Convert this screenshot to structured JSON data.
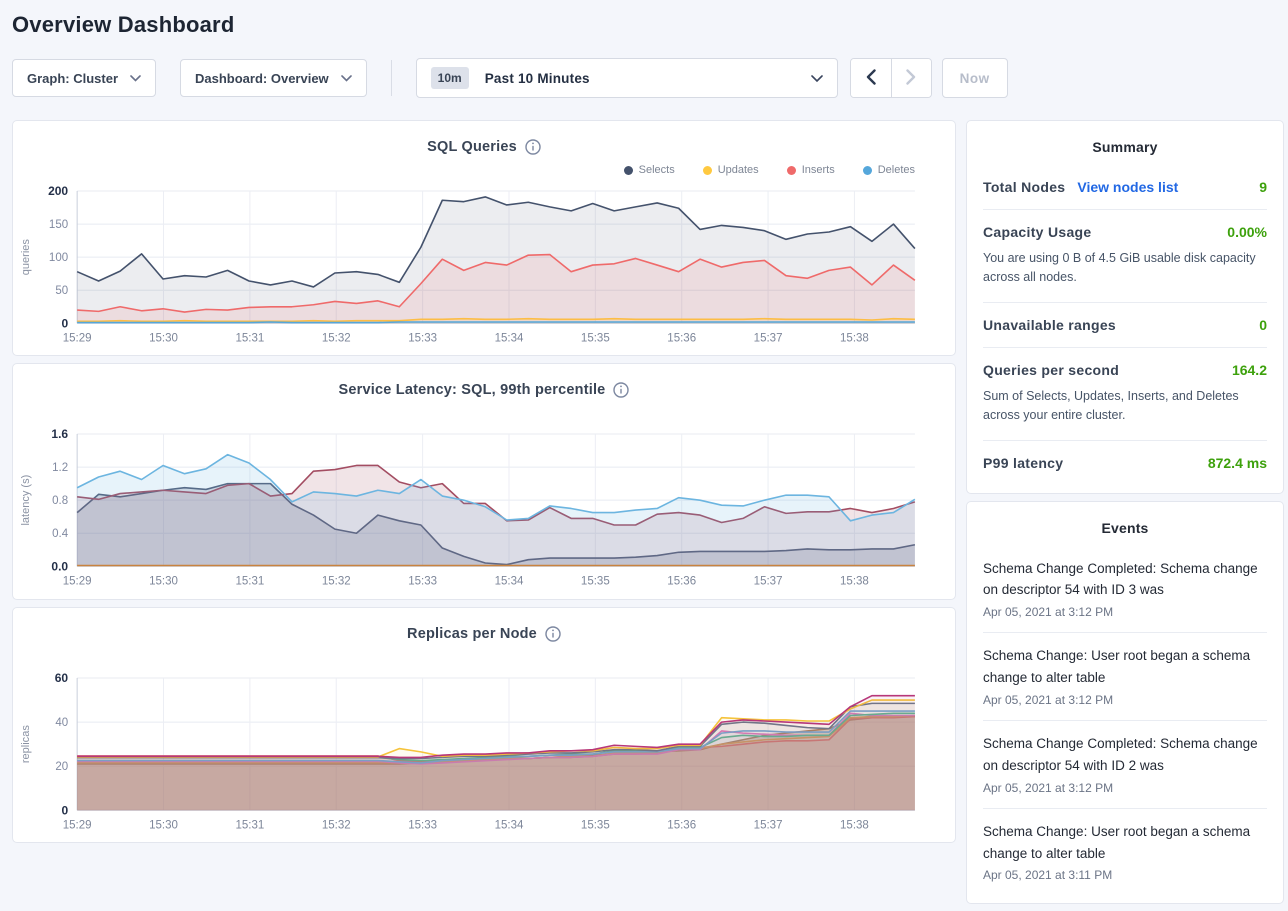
{
  "page": {
    "title": "Overview Dashboard"
  },
  "colors": {
    "accent_green": "#3da10c",
    "link_blue": "#2268e4",
    "chart_title": "#394455"
  },
  "controls": {
    "graph_dropdown": "Graph: Cluster",
    "dashboard_dropdown": "Dashboard: Overview",
    "time_badge": "10m",
    "time_label": "Past 10 Minutes",
    "now_label": "Now",
    "icons": [
      "chevron-down-icon",
      "chevron-left-icon",
      "chevron-right-icon"
    ]
  },
  "summary": {
    "title": "Summary",
    "rows": [
      {
        "label": "Total Nodes",
        "link": "View nodes list",
        "value": "9"
      },
      {
        "label": "Capacity Usage",
        "value": "0.00%",
        "desc": "You are using 0 B of 4.5 GiB usable disk capacity across all nodes."
      },
      {
        "label": "Unavailable ranges",
        "value": "0"
      },
      {
        "label": "Queries per second",
        "value": "164.2",
        "desc": "Sum of Selects, Updates, Inserts, and Deletes across your entire cluster."
      },
      {
        "label": "P99 latency",
        "value": "872.4 ms"
      }
    ]
  },
  "events": {
    "title": "Events",
    "items": [
      {
        "text": "Schema Change Completed: Schema change on descriptor 54 with ID 3 was",
        "time": "Apr 05, 2021 at 3:12 PM"
      },
      {
        "text": "Schema Change: User root began a schema change to alter table",
        "time": "Apr 05, 2021 at 3:12 PM"
      },
      {
        "text": "Schema Change Completed: Schema change on descriptor 54 with ID 2 was",
        "time": "Apr 05, 2021 at 3:12 PM"
      },
      {
        "text": "Schema Change: User root began a schema change to alter table",
        "time": "Apr 05, 2021 at 3:11 PM"
      }
    ]
  },
  "chart_data": [
    {
      "type": "area",
      "title": "SQL Queries",
      "ylabel": "queries",
      "ylim": [
        0,
        200
      ],
      "yticks": [
        0,
        50,
        100,
        150,
        200
      ],
      "ytick_labels": [
        "0",
        "50",
        "100",
        "150",
        "200"
      ],
      "xticklabels": [
        "15:29",
        "15:30",
        "15:31",
        "15:32",
        "15:33",
        "15:34",
        "15:35",
        "15:36",
        "15:37",
        "15:38"
      ],
      "x_span_minutes": 9.7,
      "grid": true,
      "legend_position": "top-right",
      "series": [
        {
          "name": "Selects",
          "color": "#44526c",
          "fill": "rgba(68,82,108,0.10)",
          "values": [
            78,
            64,
            79,
            105,
            67,
            72,
            70,
            80,
            64,
            58,
            64,
            55,
            76,
            78,
            74,
            62,
            115,
            186,
            184,
            191,
            179,
            183,
            176,
            170,
            181,
            170,
            176,
            182,
            174,
            142,
            148,
            145,
            140,
            127,
            135,
            138,
            146,
            124,
            150,
            113
          ]
        },
        {
          "name": "Updates",
          "color": "#ffc940",
          "fill": "rgba(255,201,64,0.15)",
          "values": [
            3,
            3,
            4,
            3,
            3,
            4,
            3,
            3,
            3,
            3,
            3,
            4,
            3,
            4,
            4,
            4,
            6,
            6,
            7,
            6,
            6,
            7,
            6,
            6,
            6,
            7,
            6,
            6,
            6,
            6,
            6,
            6,
            7,
            6,
            6,
            6,
            6,
            5,
            7,
            6
          ]
        },
        {
          "name": "Inserts",
          "color": "#ef6a6a",
          "fill": "rgba(239,106,106,0.13)",
          "values": [
            20,
            18,
            25,
            19,
            22,
            17,
            21,
            20,
            24,
            25,
            25,
            28,
            33,
            30,
            34,
            25,
            60,
            97,
            80,
            92,
            88,
            103,
            104,
            78,
            88,
            90,
            98,
            88,
            78,
            97,
            85,
            92,
            95,
            72,
            68,
            80,
            85,
            58,
            88,
            65
          ]
        },
        {
          "name": "Deletes",
          "color": "#55a7db",
          "fill": "rgba(85,167,219,0.15)",
          "values": [
            1,
            1,
            1,
            1,
            1,
            1,
            1,
            1,
            1,
            2,
            1,
            1,
            1,
            1,
            1,
            2,
            2,
            2,
            2,
            2,
            2,
            2,
            2,
            2,
            2,
            2,
            2,
            2,
            2,
            2,
            2,
            2,
            2,
            2,
            2,
            2,
            2,
            2,
            2,
            2
          ]
        }
      ]
    },
    {
      "type": "area",
      "title": "Service Latency: SQL, 99th percentile",
      "ylabel": "latency (s)",
      "ylim": [
        0,
        1.6
      ],
      "yticks": [
        0,
        0.4,
        0.8,
        1.2,
        1.6
      ],
      "ytick_labels": [
        "0.0",
        "0.4",
        "0.8",
        "1.2",
        "1.6"
      ],
      "xticklabels": [
        "15:29",
        "15:30",
        "15:31",
        "15:32",
        "15:33",
        "15:34",
        "15:35",
        "15:36",
        "15:37",
        "15:38"
      ],
      "x_span_minutes": 9.7,
      "grid": true,
      "legend_position": "none",
      "series": [
        {
          "color": "#535d78",
          "fill": "rgba(90,96,127,0.22)",
          "values": [
            0.65,
            0.87,
            0.84,
            0.88,
            0.92,
            0.95,
            0.93,
            1.0,
            1.0,
            1.0,
            0.75,
            0.62,
            0.45,
            0.4,
            0.62,
            0.55,
            0.5,
            0.22,
            0.12,
            0.04,
            0.02,
            0.08,
            0.1,
            0.1,
            0.1,
            0.1,
            0.11,
            0.13,
            0.17,
            0.18,
            0.18,
            0.18,
            0.18,
            0.19,
            0.21,
            0.2,
            0.2,
            0.21,
            0.21,
            0.26
          ]
        },
        {
          "color": "#a34d62",
          "fill": "rgba(164,74,94,0.15)",
          "values": [
            0.84,
            0.81,
            0.88,
            0.9,
            0.92,
            0.9,
            0.88,
            0.98,
            1.0,
            0.85,
            0.88,
            1.15,
            1.17,
            1.22,
            1.22,
            1.02,
            0.95,
            1.0,
            0.76,
            0.76,
            0.55,
            0.56,
            0.71,
            0.58,
            0.58,
            0.5,
            0.5,
            0.63,
            0.65,
            0.62,
            0.53,
            0.58,
            0.72,
            0.64,
            0.66,
            0.66,
            0.7,
            0.65,
            0.7,
            0.78
          ]
        },
        {
          "color": "#6cb5e0",
          "fill": "rgba(108,181,224,0.16)",
          "values": [
            0.95,
            1.08,
            1.15,
            1.05,
            1.22,
            1.12,
            1.18,
            1.35,
            1.25,
            1.05,
            0.78,
            0.9,
            0.88,
            0.85,
            0.92,
            0.88,
            1.05,
            0.85,
            0.8,
            0.72,
            0.56,
            0.58,
            0.73,
            0.7,
            0.65,
            0.65,
            0.68,
            0.7,
            0.83,
            0.8,
            0.74,
            0.73,
            0.8,
            0.86,
            0.86,
            0.84,
            0.55,
            0.62,
            0.65,
            0.81
          ]
        },
        {
          "color": "#c9833f",
          "fill": "rgba(201,131,63,0.08)",
          "values": [
            0.01,
            0.01,
            0.01,
            0.01,
            0.01,
            0.01,
            0.01,
            0.01,
            0.01,
            0.01,
            0.01,
            0.01,
            0.01,
            0.01,
            0.01,
            0.01,
            0.01,
            0.01,
            0.01,
            0.01,
            0.01,
            0.01,
            0.01,
            0.01,
            0.01,
            0.01,
            0.01,
            0.01,
            0.01,
            0.01,
            0.01,
            0.01,
            0.01,
            0.01,
            0.01,
            0.01,
            0.01,
            0.01,
            0.01,
            0.01
          ]
        }
      ]
    },
    {
      "type": "area",
      "title": "Replicas per Node",
      "ylabel": "replicas",
      "ylim": [
        0,
        60
      ],
      "yticks": [
        0,
        20,
        40,
        60
      ],
      "ytick_labels": [
        "0",
        "20",
        "40",
        "60"
      ],
      "xticklabels": [
        "15:29",
        "15:30",
        "15:31",
        "15:32",
        "15:33",
        "15:34",
        "15:35",
        "15:36",
        "15:37",
        "15:38"
      ],
      "x_span_minutes": 9.7,
      "grid": true,
      "legend_position": "none",
      "series": [
        {
          "color": "#a98262",
          "fill": "rgba(169,130,98,0.35)",
          "values": [
            21,
            21,
            21,
            21,
            21,
            21,
            21,
            21,
            21,
            21,
            21,
            21,
            21,
            21,
            21,
            21,
            21.5,
            22,
            22.5,
            23,
            23.5,
            23.5,
            24,
            24.5,
            25,
            25.5,
            26,
            26.5,
            27,
            27.5,
            30,
            32,
            34,
            35,
            36,
            37,
            41,
            42,
            42.5,
            42.5
          ]
        },
        {
          "color": "#e06c6c",
          "fill": "rgba(224,108,108,0.18)",
          "values": [
            24.7,
            24.7,
            24.7,
            24.7,
            24.7,
            24.7,
            24.7,
            24.7,
            24.7,
            24.7,
            24.7,
            24.7,
            24.7,
            24.7,
            24.7,
            22.5,
            22,
            22.5,
            23,
            23,
            23.5,
            23.5,
            24,
            24,
            24.5,
            25.5,
            25.5,
            26,
            28,
            28.5,
            29,
            30,
            31,
            31.5,
            31.5,
            32,
            41.5,
            42,
            42,
            42.5
          ]
        },
        {
          "color": "#dd9a54",
          "fill": "rgba(221,154,84,0.07)",
          "values": [
            21.6,
            21.6,
            21.6,
            21.6,
            21.6,
            21.6,
            21.6,
            21.6,
            21.6,
            21.6,
            21.6,
            21.6,
            21.6,
            21.6,
            21.6,
            21.5,
            21.5,
            22,
            22.5,
            23,
            23.5,
            23.5,
            24,
            24.5,
            24.5,
            26,
            26,
            26,
            27.5,
            28,
            30,
            31,
            32,
            32.5,
            33,
            33.5,
            42,
            42.5,
            42.5,
            43
          ]
        },
        {
          "color": "#e377c2",
          "fill": "rgba(227,119,194,0.07)",
          "values": [
            22.2,
            22.2,
            22.2,
            22.2,
            22.2,
            22.2,
            22.2,
            22.2,
            22.2,
            22.2,
            22.2,
            22.2,
            22.2,
            22.2,
            22.2,
            21.5,
            21,
            21.5,
            22,
            22.5,
            23,
            23.5,
            24,
            24,
            24.5,
            25.5,
            25.5,
            25.5,
            27.5,
            27.5,
            36,
            35,
            34.5,
            34,
            34,
            34,
            44,
            43,
            43,
            43
          ]
        },
        {
          "color": "#57b894",
          "fill": "rgba(87,184,148,0.07)",
          "values": [
            24,
            24,
            24,
            24,
            24,
            24,
            24,
            24,
            24,
            24,
            24,
            24,
            24,
            24,
            24,
            23,
            22.5,
            23,
            23.5,
            24,
            24.5,
            24.5,
            25,
            25.5,
            25.5,
            27,
            27,
            26.5,
            28.5,
            28.5,
            33,
            34,
            33.5,
            33.5,
            34,
            34,
            43,
            43.5,
            44,
            44
          ]
        },
        {
          "color": "#6fa8dc",
          "fill": "rgba(111,168,220,0.07)",
          "values": [
            22.6,
            22.6,
            22.6,
            22.6,
            22.6,
            22.6,
            22.6,
            22.6,
            22.6,
            22.6,
            22.6,
            22.6,
            22.6,
            22.6,
            22.6,
            22,
            21.5,
            22.5,
            23,
            23.5,
            24,
            24.5,
            25,
            25,
            25.5,
            26.5,
            26.5,
            26.5,
            28,
            28,
            35,
            36,
            36,
            35.5,
            35.5,
            35.5,
            45,
            45,
            45,
            45
          ]
        },
        {
          "color": "#64748f",
          "fill": "rgba(100,116,143,0.07)",
          "values": [
            23.9,
            23.9,
            23.9,
            23.9,
            23.9,
            23.9,
            23.9,
            23.9,
            23.9,
            23.9,
            23.9,
            23.9,
            23.9,
            23.9,
            23.9,
            23.5,
            23.5,
            24,
            24.5,
            24.5,
            25,
            25.5,
            26,
            26,
            26.5,
            27.5,
            27.5,
            27,
            29,
            29,
            39,
            40,
            39.5,
            38.5,
            37.5,
            37,
            47,
            48.5,
            48.5,
            48.5
          ]
        },
        {
          "color": "#f5c33b",
          "fill": "rgba(245,195,59,0.07)",
          "values": [
            24.2,
            24.2,
            24.2,
            24.2,
            24.2,
            24.2,
            24.2,
            24.2,
            24.2,
            24.2,
            24.2,
            24.2,
            24.2,
            24.2,
            24.2,
            28,
            26.5,
            24.5,
            25,
            25,
            25.5,
            26,
            26.5,
            27,
            27,
            28.5,
            28,
            28,
            29.5,
            29.5,
            42,
            41.5,
            41,
            41,
            40.5,
            40.5,
            46,
            50,
            50,
            50
          ]
        },
        {
          "color": "#b73779",
          "fill": "rgba(183,55,121,0.07)",
          "values": [
            24.5,
            24.5,
            24.5,
            24.5,
            24.5,
            24.5,
            24.5,
            24.5,
            24.5,
            24.5,
            24.5,
            24.5,
            24.5,
            24.5,
            24.5,
            24,
            24,
            25,
            25.5,
            25.5,
            26,
            26,
            27,
            27,
            27.5,
            29.5,
            29,
            28.5,
            30,
            30,
            40,
            41,
            40.5,
            40,
            39.5,
            39,
            47,
            52,
            52,
            52
          ]
        }
      ]
    }
  ]
}
